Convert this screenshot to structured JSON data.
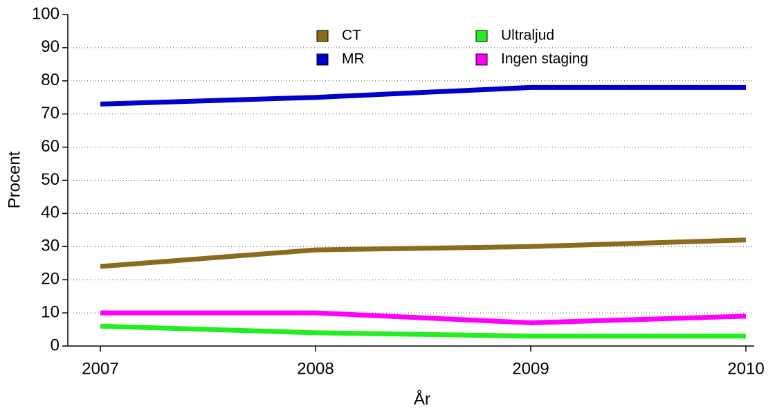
{
  "chart_data": {
    "type": "line",
    "x_label": "År",
    "y_label": "Procent",
    "categories": [
      "2007",
      "2008",
      "2009",
      "2010"
    ],
    "series": [
      {
        "name": "CT",
        "color": "#8b6b1e",
        "values": [
          24,
          29,
          30,
          32
        ]
      },
      {
        "name": "MR",
        "color": "#0000cc",
        "values": [
          73,
          75,
          78,
          78
        ]
      },
      {
        "name": "Ultraljud",
        "color": "#22ee22",
        "values": [
          6,
          4,
          3,
          3
        ]
      },
      {
        "name": "Ingen staging",
        "color": "#ff00ff",
        "values": [
          10,
          10,
          7,
          9
        ]
      }
    ],
    "ylim": [
      0,
      100
    ],
    "yticks": [
      0,
      10,
      20,
      30,
      40,
      50,
      60,
      70,
      80,
      90,
      100
    ],
    "grid": true
  }
}
